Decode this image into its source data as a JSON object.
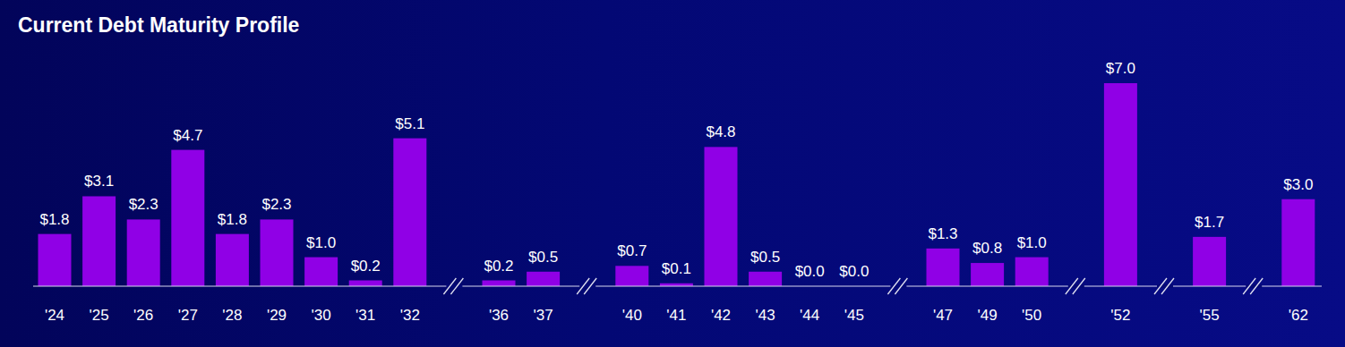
{
  "chart_data": {
    "type": "bar",
    "title": "Current Debt Maturity Profile",
    "categories": [
      "'24",
      "'25",
      "'26",
      "'27",
      "'28",
      "'29",
      "'30",
      "'31",
      "'32",
      "'36",
      "'37",
      "'40",
      "'41",
      "'42",
      "'43",
      "'44",
      "'45",
      "'47",
      "'49",
      "'50",
      "'52",
      "'55",
      "'62"
    ],
    "values": [
      1.8,
      3.1,
      2.3,
      4.7,
      1.8,
      2.3,
      1.0,
      0.2,
      5.1,
      0.2,
      0.5,
      0.7,
      0.1,
      4.8,
      0.5,
      0.0,
      0.0,
      1.3,
      0.8,
      1.0,
      7.0,
      1.7,
      3.0
    ],
    "value_labels": [
      "$1.8",
      "$3.1",
      "$2.3",
      "$4.7",
      "$1.8",
      "$2.3",
      "$1.0",
      "$0.2",
      "$5.1",
      "$0.2",
      "$0.5",
      "$0.7",
      "$0.1",
      "$4.8",
      "$0.5",
      "$0.0",
      "$0.0",
      "$1.3",
      "$0.8",
      "$1.0",
      "$7.0",
      "$1.7",
      "$3.0"
    ],
    "color": "#9000e6",
    "ylim": [
      0,
      7.0
    ],
    "grid": false,
    "data_labels": true,
    "tick_labels": "x"
  }
}
